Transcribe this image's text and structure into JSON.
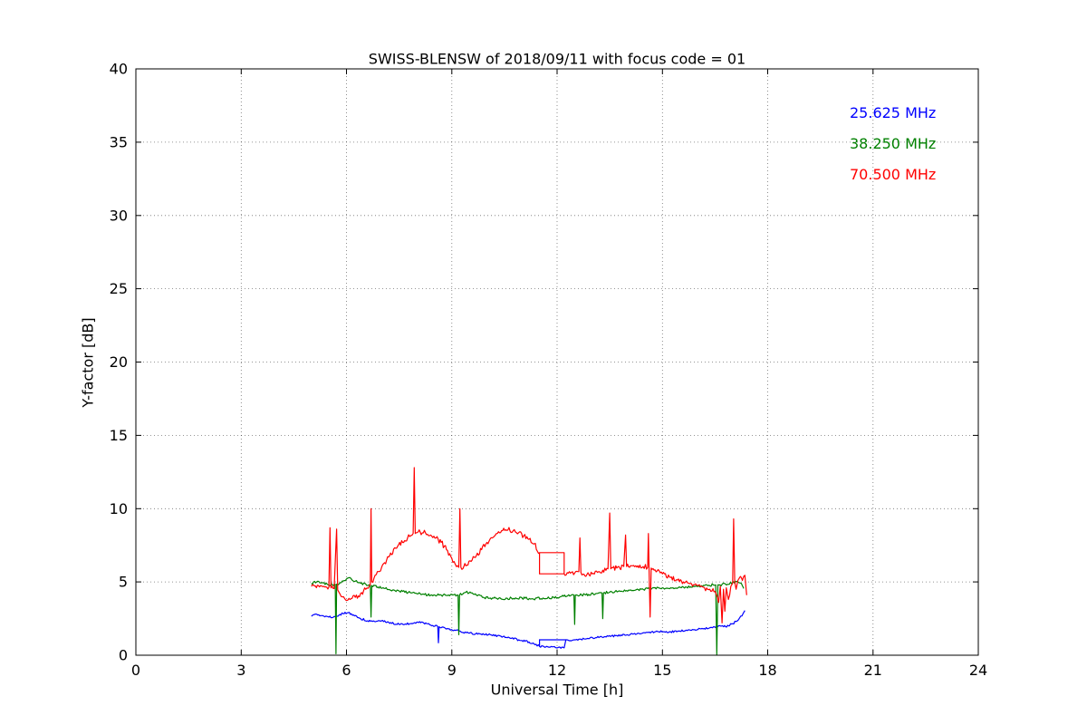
{
  "figure": {
    "background": "#ffffff"
  },
  "chart_data": {
    "type": "line",
    "title": "SWISS-BLENSW of 2018/09/11 with focus code = 01",
    "xlabel": "Universal Time [h]",
    "ylabel": "Y-factor [dB]",
    "xlim": [
      0,
      24
    ],
    "ylim": [
      0,
      40
    ],
    "xticks": [
      0,
      3,
      6,
      9,
      12,
      15,
      18,
      21,
      24
    ],
    "yticks": [
      0,
      5,
      10,
      15,
      20,
      25,
      30,
      35,
      40
    ],
    "grid": true,
    "grid_style": "dotted",
    "axis_color": "#000000",
    "legend": {
      "position": "top-right",
      "entries": [
        {
          "label": "25.625 MHz",
          "color": "#0000ff"
        },
        {
          "label": "38.250 MHz",
          "color": "#008000"
        },
        {
          "label": "70.500 MHz",
          "color": "#ff0000"
        }
      ]
    },
    "series": [
      {
        "name": "25.625 MHz",
        "color": "#0000ff",
        "jitter": 0.07,
        "points": [
          [
            5.0,
            2.65
          ],
          [
            5.15,
            2.8
          ],
          [
            5.3,
            2.7
          ],
          [
            5.5,
            2.6
          ],
          [
            5.7,
            2.65
          ],
          [
            5.9,
            2.85
          ],
          [
            6.05,
            2.9
          ],
          [
            6.2,
            2.75
          ],
          [
            6.4,
            2.5
          ],
          [
            6.6,
            2.35
          ],
          [
            6.8,
            2.3
          ],
          [
            7.0,
            2.35
          ],
          [
            7.2,
            2.25
          ],
          [
            7.5,
            2.1
          ],
          [
            7.8,
            2.15
          ],
          [
            8.0,
            2.25
          ],
          [
            8.2,
            2.2
          ],
          [
            8.4,
            2.05
          ],
          [
            8.6,
            1.95
          ],
          [
            8.62,
            0.85
          ],
          [
            8.64,
            1.95
          ],
          [
            8.9,
            1.8
          ],
          [
            9.2,
            1.65
          ],
          [
            9.5,
            1.5
          ],
          [
            9.8,
            1.45
          ],
          [
            10.1,
            1.4
          ],
          [
            10.4,
            1.3
          ],
          [
            10.7,
            1.15
          ],
          [
            11.0,
            1.0
          ],
          [
            11.2,
            0.9
          ],
          [
            11.4,
            0.75
          ],
          [
            11.5,
            0.6
          ],
          [
            11.8,
            0.55
          ],
          [
            12.2,
            0.5
          ],
          [
            12.25,
            1.05,
            1
          ],
          [
            12.5,
            1.05
          ],
          [
            12.8,
            1.1
          ],
          [
            13.1,
            1.2
          ],
          [
            13.4,
            1.25
          ],
          [
            13.7,
            1.35
          ],
          [
            14.0,
            1.4
          ],
          [
            14.3,
            1.5
          ],
          [
            14.6,
            1.55
          ],
          [
            14.9,
            1.6
          ],
          [
            15.2,
            1.6
          ],
          [
            15.5,
            1.65
          ],
          [
            15.8,
            1.7
          ],
          [
            16.1,
            1.8
          ],
          [
            16.4,
            1.9
          ],
          [
            16.6,
            2.0
          ],
          [
            16.8,
            1.95
          ],
          [
            17.0,
            2.15
          ],
          [
            17.1,
            2.3
          ],
          [
            17.2,
            2.55
          ],
          [
            17.3,
            2.85
          ],
          [
            17.35,
            3.05
          ]
        ],
        "extra_segments": [
          [
            [
              11.5,
              0.6
            ],
            [
              11.5,
              1.05
            ],
            [
              12.25,
              1.05
            ]
          ]
        ]
      },
      {
        "name": "38.250 MHz",
        "color": "#008000",
        "jitter": 0.09,
        "points": [
          [
            5.0,
            4.9
          ],
          [
            5.15,
            5.0
          ],
          [
            5.3,
            4.95
          ],
          [
            5.45,
            4.85
          ],
          [
            5.6,
            4.8
          ],
          [
            5.68,
            4.85
          ],
          [
            5.7,
            0.1
          ],
          [
            5.72,
            4.85
          ],
          [
            5.85,
            4.95
          ],
          [
            6.0,
            5.2
          ],
          [
            6.1,
            5.3
          ],
          [
            6.25,
            5.05
          ],
          [
            6.4,
            4.9
          ],
          [
            6.55,
            4.85
          ],
          [
            6.68,
            4.8
          ],
          [
            6.7,
            2.6
          ],
          [
            6.72,
            4.75
          ],
          [
            6.9,
            4.65
          ],
          [
            7.1,
            4.55
          ],
          [
            7.35,
            4.45
          ],
          [
            7.6,
            4.35
          ],
          [
            7.85,
            4.25
          ],
          [
            8.1,
            4.2
          ],
          [
            8.4,
            4.1
          ],
          [
            8.7,
            4.1
          ],
          [
            9.0,
            4.15
          ],
          [
            9.18,
            4.1
          ],
          [
            9.2,
            1.4
          ],
          [
            9.22,
            4.1
          ],
          [
            9.4,
            4.3
          ],
          [
            9.55,
            4.25
          ],
          [
            9.7,
            4.1
          ],
          [
            9.9,
            3.95
          ],
          [
            10.1,
            3.9
          ],
          [
            10.4,
            3.85
          ],
          [
            10.7,
            3.9
          ],
          [
            11.0,
            3.9
          ],
          [
            11.3,
            3.85
          ],
          [
            11.6,
            3.9
          ],
          [
            11.9,
            3.95
          ],
          [
            12.1,
            4.0
          ],
          [
            12.3,
            4.05
          ],
          [
            12.48,
            4.1
          ],
          [
            12.5,
            2.1
          ],
          [
            12.52,
            4.1
          ],
          [
            12.7,
            4.1
          ],
          [
            12.9,
            4.15
          ],
          [
            13.1,
            4.2
          ],
          [
            13.28,
            4.25
          ],
          [
            13.3,
            2.5
          ],
          [
            13.32,
            4.25
          ],
          [
            13.5,
            4.3
          ],
          [
            13.8,
            4.35
          ],
          [
            14.1,
            4.45
          ],
          [
            14.4,
            4.5
          ],
          [
            14.7,
            4.55
          ],
          [
            15.0,
            4.6
          ],
          [
            15.3,
            4.6
          ],
          [
            15.6,
            4.65
          ],
          [
            15.9,
            4.7
          ],
          [
            16.2,
            4.75
          ],
          [
            16.45,
            4.8
          ],
          [
            16.52,
            4.8
          ],
          [
            16.55,
            0.05
          ],
          [
            16.58,
            4.8
          ],
          [
            16.8,
            4.85
          ],
          [
            17.0,
            4.95
          ],
          [
            17.15,
            5.0
          ],
          [
            17.25,
            4.9
          ],
          [
            17.32,
            4.55
          ]
        ],
        "extra_segments": []
      },
      {
        "name": "70.500 MHz",
        "color": "#ff0000",
        "jitter": 0.18,
        "points": [
          [
            5.0,
            4.7
          ],
          [
            5.2,
            4.75
          ],
          [
            5.35,
            4.7
          ],
          [
            5.5,
            4.65
          ],
          [
            5.53,
            8.7
          ],
          [
            5.56,
            4.6
          ],
          [
            5.65,
            4.55
          ],
          [
            5.72,
            8.6
          ],
          [
            5.75,
            4.45
          ],
          [
            5.85,
            4.0
          ],
          [
            5.95,
            3.85
          ],
          [
            6.1,
            3.8
          ],
          [
            6.25,
            3.95
          ],
          [
            6.4,
            4.2
          ],
          [
            6.55,
            4.5
          ],
          [
            6.68,
            4.85
          ],
          [
            6.7,
            10.0
          ],
          [
            6.72,
            5.0
          ],
          [
            6.85,
            5.5
          ],
          [
            7.0,
            6.0
          ],
          [
            7.2,
            6.7
          ],
          [
            7.4,
            7.3
          ],
          [
            7.6,
            7.7
          ],
          [
            7.8,
            8.1
          ],
          [
            7.9,
            8.3
          ],
          [
            7.93,
            12.8
          ],
          [
            7.96,
            8.3
          ],
          [
            8.1,
            8.4
          ],
          [
            8.25,
            8.35
          ],
          [
            8.4,
            8.2
          ],
          [
            8.55,
            8.0
          ],
          [
            8.7,
            7.7
          ],
          [
            8.85,
            7.2
          ],
          [
            9.0,
            6.6
          ],
          [
            9.1,
            6.2
          ],
          [
            9.2,
            6.0
          ],
          [
            9.23,
            10.0
          ],
          [
            9.26,
            6.0
          ],
          [
            9.4,
            6.1
          ],
          [
            9.55,
            6.4
          ],
          [
            9.7,
            6.8
          ],
          [
            9.85,
            7.2
          ],
          [
            10.0,
            7.7
          ],
          [
            10.15,
            8.0
          ],
          [
            10.3,
            8.3
          ],
          [
            10.45,
            8.5
          ],
          [
            10.6,
            8.55
          ],
          [
            10.75,
            8.5
          ],
          [
            10.9,
            8.35
          ],
          [
            11.05,
            8.15
          ],
          [
            11.2,
            7.9
          ],
          [
            11.35,
            7.6
          ],
          [
            11.5,
            7.0
          ],
          [
            12.2,
            7.0,
            1
          ],
          [
            12.2,
            5.55,
            1
          ],
          [
            12.35,
            5.7
          ],
          [
            12.5,
            5.6
          ],
          [
            12.62,
            5.7
          ],
          [
            12.65,
            8.0
          ],
          [
            12.68,
            5.65
          ],
          [
            12.85,
            5.5
          ],
          [
            13.0,
            5.55
          ],
          [
            13.15,
            5.65
          ],
          [
            13.3,
            5.8
          ],
          [
            13.45,
            5.9
          ],
          [
            13.5,
            9.7
          ],
          [
            13.53,
            5.9
          ],
          [
            13.7,
            5.95
          ],
          [
            13.9,
            6.05
          ],
          [
            13.95,
            8.2
          ],
          [
            13.98,
            6.05
          ],
          [
            14.15,
            6.1
          ],
          [
            14.3,
            6.1
          ],
          [
            14.45,
            6.05
          ],
          [
            14.58,
            6.0
          ],
          [
            14.6,
            8.3
          ],
          [
            14.62,
            6.0
          ],
          [
            14.65,
            2.6
          ],
          [
            14.68,
            5.95
          ],
          [
            14.85,
            5.75
          ],
          [
            15.0,
            5.55
          ],
          [
            15.2,
            5.35
          ],
          [
            15.4,
            5.15
          ],
          [
            15.6,
            5.0
          ],
          [
            15.8,
            4.9
          ],
          [
            16.0,
            4.75
          ],
          [
            16.2,
            4.6
          ],
          [
            16.35,
            4.5
          ],
          [
            16.5,
            4.35
          ],
          [
            16.6,
            3.6
          ],
          [
            16.65,
            4.7
          ],
          [
            16.7,
            2.2
          ],
          [
            16.74,
            4.5
          ],
          [
            16.78,
            3.0
          ],
          [
            16.82,
            4.6
          ],
          [
            16.88,
            3.8
          ],
          [
            16.95,
            4.7
          ],
          [
            17.0,
            4.9
          ],
          [
            17.03,
            9.3
          ],
          [
            17.06,
            5.0
          ],
          [
            17.1,
            4.5
          ],
          [
            17.15,
            5.1
          ],
          [
            17.2,
            5.3
          ],
          [
            17.28,
            5.1
          ],
          [
            17.35,
            5.45
          ],
          [
            17.4,
            4.1
          ]
        ],
        "extra_segments": [
          [
            [
              11.5,
              7.0
            ],
            [
              11.5,
              5.55
            ],
            [
              12.2,
              5.55
            ]
          ]
        ]
      }
    ]
  }
}
